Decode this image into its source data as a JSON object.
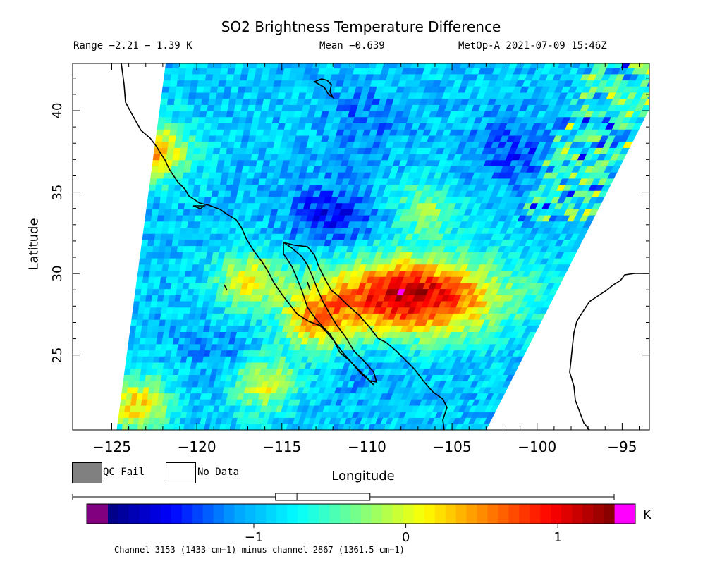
{
  "header": {
    "title": "SO2 Brightness Temperature Difference",
    "range": "Range −2.21 − 1.39 K",
    "mean": "Mean −0.639",
    "satellite_time": "MetOp-A 2021-07-09 15:46Z"
  },
  "axes": {
    "xlabel": "Longitude",
    "ylabel": "Latitude",
    "x_ticks": [
      "−125",
      "−120",
      "−115",
      "−110",
      "−105",
      "−100",
      "−95"
    ],
    "x_tick_values": [
      -125,
      -120,
      -115,
      -110,
      -105,
      -100,
      -95
    ],
    "y_ticks": [
      "25",
      "30",
      "35",
      "40"
    ],
    "y_tick_values": [
      25,
      30,
      35,
      40
    ],
    "xlim": [
      -127.3,
      -93.4
    ],
    "ylim": [
      20.4,
      42.9
    ]
  },
  "legend": {
    "qc_fail_label": "QC Fail",
    "no_data_label": "No Data",
    "qc_fail_color": "#808080",
    "no_data_color": "#ffffff"
  },
  "colorbar": {
    "ticks": [
      "−1",
      "0",
      "1"
    ],
    "tick_values": [
      -1,
      0,
      1
    ],
    "vmin": -1.96,
    "vmax": 1.37,
    "unit": "K",
    "under_color": "#800080",
    "over_color": "#ff00ff",
    "stops": [
      "#00007f",
      "#0000ff",
      "#00a0ff",
      "#00ffff",
      "#80ff80",
      "#ffff00",
      "#ff8000",
      "#ff0000",
      "#7f0000"
    ],
    "boxplot": {
      "min": -2.21,
      "q1": -0.95,
      "median": -0.8,
      "q3": -0.31,
      "max": 1.39
    }
  },
  "caption": "Channel 3153 (1433 cm−1) minus channel 2867 (1361.5 cm−1)",
  "map_data": {
    "swath_corners": [
      [
        -124.7,
        20.4
      ],
      [
        -103.0,
        20.4
      ],
      [
        -92.0,
        43.0
      ],
      [
        -121.8,
        43.0
      ]
    ],
    "plume": {
      "center": [
        -107.5,
        28.6
      ],
      "peak_value": 1.1
    },
    "highlights": [
      {
        "center": [
          -116.0,
          23.3
        ],
        "value": 0.2
      },
      {
        "center": [
          -123.5,
          22.0
        ],
        "value": 0.35
      },
      {
        "center": [
          -122.3,
          37.5
        ],
        "value": 0.5
      },
      {
        "center": [
          -117.0,
          29.6
        ],
        "value": 0.15
      },
      {
        "center": [
          -106.5,
          34.0
        ],
        "value": -0.2
      },
      {
        "center": [
          -113.0,
          27.0
        ],
        "value": 0.15
      }
    ],
    "lows": [
      {
        "center": [
          -112.0,
          33.5
        ],
        "value": -1.7
      },
      {
        "center": [
          -101.5,
          37.5
        ],
        "value": -1.5
      },
      {
        "center": [
          -110.0,
          39.5
        ],
        "value": -1.3
      },
      {
        "center": [
          -118.0,
          25.0
        ],
        "value": -1.2
      },
      {
        "center": [
          -110.0,
          23.5
        ],
        "value": -1.1
      }
    ],
    "background_value": -0.95
  }
}
